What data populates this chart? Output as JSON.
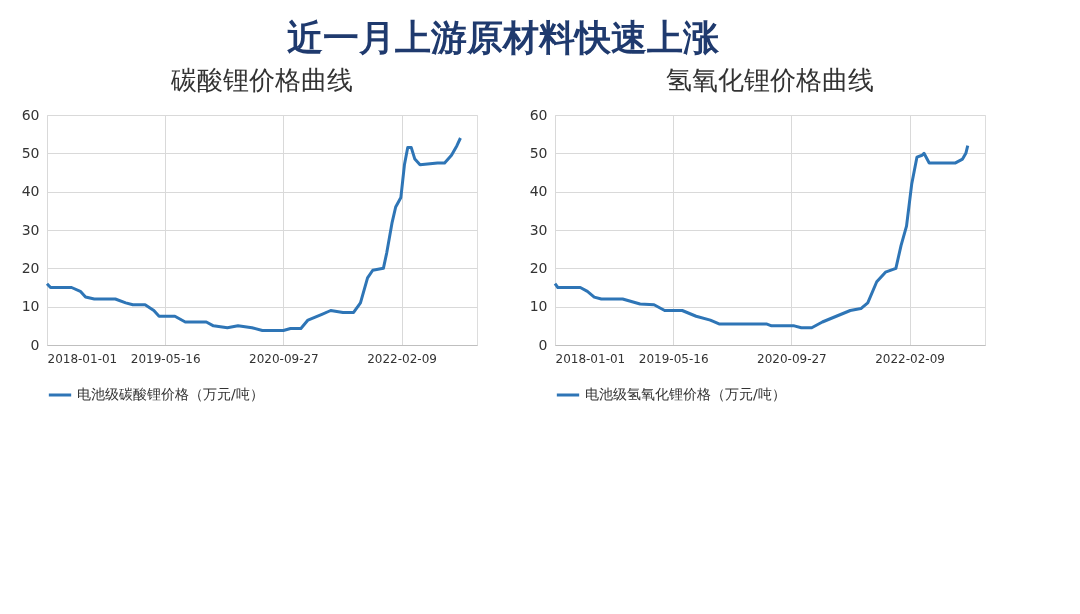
{
  "chart_data": [
    {
      "type": "line",
      "title": "近一月上游原材料快速上涨",
      "subtitle": "碳酸锂价格曲线",
      "x": [
        "2018-01-01",
        "2018-01-16",
        "2018-04-15",
        "2018-05-22",
        "2018-06-13",
        "2018-07-20",
        "2018-10-17",
        "2018-11-30",
        "2018-12-30",
        "2019-02-20",
        "2019-03-29",
        "2019-04-20",
        "2019-06-26",
        "2019-08-09",
        "2019-11-06",
        "2019-12-06",
        "2020-02-03",
        "2020-03-19",
        "2020-05-17",
        "2020-06-30",
        "2020-09-27",
        "2020-10-27",
        "2020-12-10",
        "2021-01-09",
        "2021-03-09",
        "2021-04-15",
        "2021-06-06",
        "2021-07-21",
        "2021-08-19",
        "2021-09-18",
        "2021-10-10",
        "2021-11-24",
        "2021-12-08",
        "2021-12-31",
        "2022-01-15",
        "2022-02-06",
        "2022-02-21",
        "2022-03-07",
        "2022-03-22",
        "2022-04-06",
        "2022-04-28",
        "2022-07-11",
        "2022-08-10",
        "2022-09-08",
        "2022-10-01",
        "2022-10-16"
      ],
      "series": [
        {
          "name": "电池级碳酸锂价格（万元/吨）",
          "color": "#2e75b6",
          "values": [
            16,
            15,
            15,
            14,
            12.5,
            12,
            12,
            11,
            10.5,
            10.5,
            9,
            7.5,
            7.5,
            6,
            6,
            5,
            4.5,
            5,
            4.5,
            3.8,
            3.8,
            4.3,
            4.3,
            6.5,
            8,
            9,
            8.5,
            8.5,
            11,
            17.5,
            19.5,
            20,
            24,
            32,
            36,
            38.5,
            47,
            51.5,
            51.5,
            48.5,
            47,
            47.5,
            47.5,
            49.5,
            52,
            54
          ]
        }
      ],
      "xlim": [
        "2018-01-01",
        "2022-12-25"
      ],
      "xticks": [
        "2018-01-01",
        "2019-05-16",
        "2020-09-27",
        "2022-02-09"
      ],
      "ylim": [
        0,
        60
      ],
      "yticks": [
        0,
        10,
        20,
        30,
        40,
        50,
        60
      ],
      "grid": true,
      "legend": "bottom",
      "marker": "none",
      "line_style": "solid"
    },
    {
      "type": "line",
      "subtitle": "氢氧化锂价格曲线",
      "x": [
        "2018-01-01",
        "2018-01-13",
        "2018-04-18",
        "2018-05-18",
        "2018-06-16",
        "2018-07-16",
        "2018-10-14",
        "2018-12-27",
        "2019-02-24",
        "2019-04-10",
        "2019-06-23",
        "2019-08-21",
        "2019-10-20",
        "2019-11-26",
        "2020-06-13",
        "2020-07-05",
        "2020-10-09",
        "2020-11-08",
        "2020-12-22",
        "2021-02-05",
        "2021-04-05",
        "2021-06-03",
        "2021-07-18",
        "2021-08-16",
        "2021-09-23",
        "2021-10-30",
        "2021-12-13",
        "2022-01-04",
        "2022-01-27",
        "2022-02-18",
        "2022-03-12",
        "2022-04-03",
        "2022-04-11",
        "2022-05-03",
        "2022-08-22",
        "2022-09-21",
        "2022-10-05",
        "2022-10-13"
      ],
      "series": [
        {
          "name": "电池级氢氧化锂价格（万元/吨）",
          "color": "#2e75b6",
          "values": [
            16,
            15,
            15,
            14,
            12.5,
            12,
            12,
            10.7,
            10.5,
            9,
            9,
            7.5,
            6.5,
            5.5,
            5.5,
            5,
            5,
            4.5,
            4.5,
            6,
            7.5,
            9,
            9.5,
            11,
            16.5,
            19,
            20,
            26,
            31,
            42,
            49,
            49.5,
            50,
            47.5,
            47.5,
            48.5,
            50,
            52
          ]
        }
      ],
      "xlim": [
        "2018-01-01",
        "2022-12-25"
      ],
      "xticks": [
        "2018-01-01",
        "2019-05-16",
        "2020-09-27",
        "2022-02-09"
      ],
      "ylim": [
        0,
        60
      ],
      "yticks": [
        0,
        10,
        20,
        30,
        40,
        50,
        60
      ],
      "grid": true,
      "legend": "bottom",
      "marker": "none",
      "line_style": "solid"
    }
  ]
}
